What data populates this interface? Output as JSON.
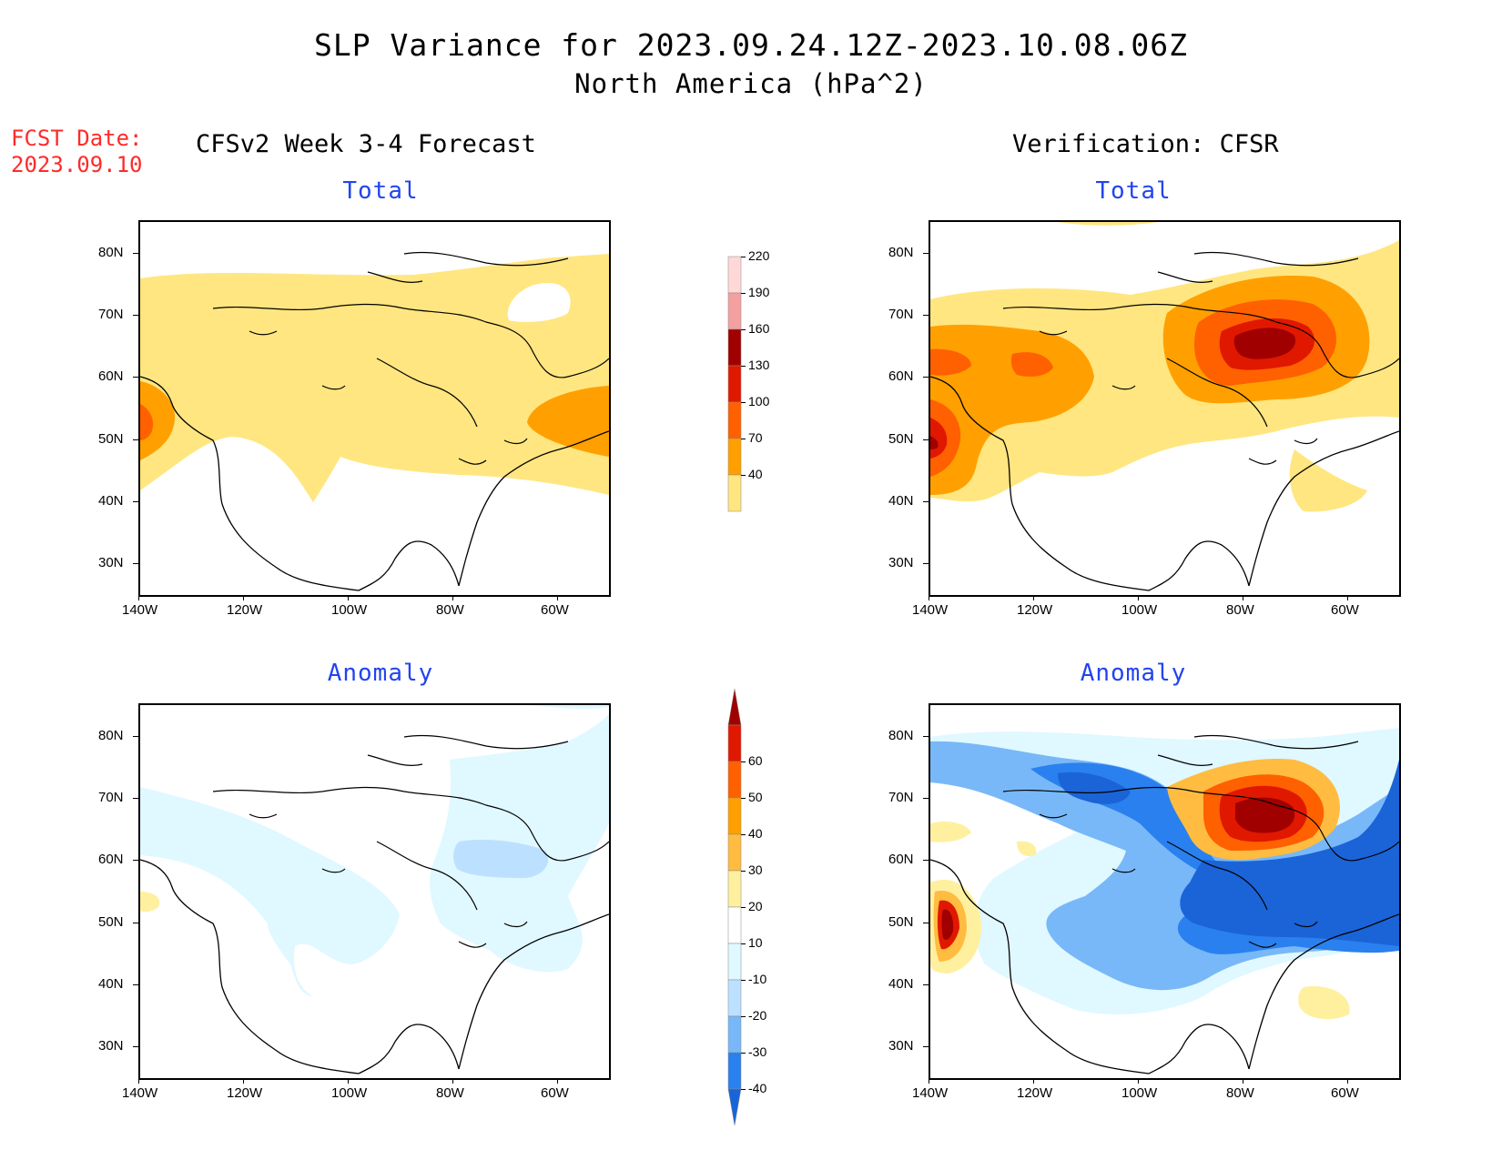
{
  "title": {
    "line1": "SLP Variance for 2023.09.24.12Z-2023.10.08.06Z",
    "line2": "North America (hPa^2)"
  },
  "forecast_date": {
    "label": "FCST Date:",
    "value": "2023.09.10"
  },
  "columns": {
    "left": "CFSv2 Week 3-4 Forecast",
    "right": "Verification: CFSR"
  },
  "panels": {
    "top_left": "Total",
    "top_right": "Total",
    "bottom_left": "Anomaly",
    "bottom_right": "Anomaly"
  },
  "axes": {
    "lat_labels": [
      "80N",
      "70N",
      "60N",
      "50N",
      "40N",
      "30N"
    ],
    "lon_labels": [
      "140W",
      "120W",
      "100W",
      "80W",
      "60W"
    ]
  },
  "colorbars": {
    "total": {
      "levels": [
        "40",
        "70",
        "100",
        "130",
        "160",
        "190",
        "220"
      ],
      "colors": [
        "#ffe680",
        "#ffa000",
        "#ff6000",
        "#e01800",
        "#a00000",
        "#f4a0a0",
        "#ffd8d8"
      ]
    },
    "anomaly": {
      "levels": [
        "-40",
        "-30",
        "-20",
        "-10",
        "10",
        "20",
        "30",
        "40",
        "50",
        "60"
      ],
      "colors": [
        "#1a64d8",
        "#2a80ee",
        "#78b8f8",
        "#bce0ff",
        "#e0f8ff",
        "#ffffff",
        "#fff0a0",
        "#ffbc40",
        "#ffa000",
        "#ff6000",
        "#e01800",
        "#a00000"
      ]
    }
  },
  "chart_data": {
    "type": "heatmap",
    "variable": "SLP Variance",
    "units": "hPa^2",
    "domain": {
      "lon_range": [
        -140,
        -50
      ],
      "lat_range": [
        25,
        85
      ]
    },
    "notes": "Contour fill maps of total and anomaly sea level pressure variance"
  }
}
